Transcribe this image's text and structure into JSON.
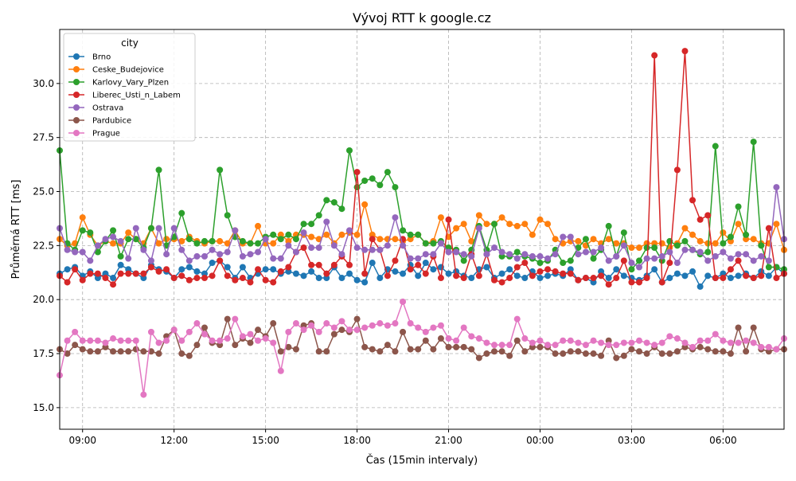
{
  "chart_data": {
    "type": "line",
    "title": "Vývoj RTT k google.cz",
    "xlabel": "Čas (15min intervaly)",
    "ylabel": "Průměrná RTT [ms]",
    "xlim": [
      "08:15",
      "08:00 (+1 day)"
    ],
    "ylim": [
      14.0,
      32.5
    ],
    "x_ticks": [
      "09:00",
      "12:00",
      "15:00",
      "18:00",
      "21:00",
      "00:00",
      "03:00",
      "06:00"
    ],
    "y_ticks": [
      "15.0",
      "17.5",
      "20.0",
      "22.5",
      "25.0",
      "27.5",
      "30.0"
    ],
    "grid": true,
    "legend": {
      "title": "city",
      "placement": "top-left"
    },
    "x": [
      "08:15",
      "08:30",
      "08:45",
      "09:00",
      "09:15",
      "09:30",
      "09:45",
      "10:00",
      "10:15",
      "10:30",
      "10:45",
      "11:00",
      "11:15",
      "11:30",
      "11:45",
      "12:00",
      "12:15",
      "12:30",
      "12:45",
      "13:00",
      "13:15",
      "13:30",
      "13:45",
      "14:00",
      "14:15",
      "14:30",
      "14:45",
      "15:00",
      "15:15",
      "15:30",
      "15:45",
      "16:00",
      "16:15",
      "16:30",
      "16:45",
      "17:00",
      "17:15",
      "17:30",
      "17:45",
      "18:00",
      "18:15",
      "18:30",
      "18:45",
      "19:00",
      "19:15",
      "19:30",
      "19:45",
      "20:00",
      "20:15",
      "20:30",
      "20:45",
      "21:00",
      "21:15",
      "21:30",
      "21:45",
      "22:00",
      "22:15",
      "22:30",
      "22:45",
      "23:00",
      "23:15",
      "23:30",
      "23:45",
      "00:00",
      "00:15",
      "00:30",
      "00:45",
      "01:00",
      "01:15",
      "01:30",
      "01:45",
      "02:00",
      "02:15",
      "02:30",
      "02:45",
      "03:00",
      "03:15",
      "03:30",
      "03:45",
      "04:00",
      "04:15",
      "04:30",
      "04:45",
      "05:00",
      "05:15",
      "05:30",
      "05:45",
      "06:00",
      "06:15",
      "06:30",
      "06:45",
      "07:00",
      "07:15",
      "07:30",
      "07:45",
      "08:00"
    ],
    "series": [
      {
        "name": "Brno",
        "color": "#1f77b4",
        "values": [
          21.2,
          21.4,
          21.5,
          21.1,
          21.3,
          21.0,
          21.2,
          21.0,
          21.6,
          21.4,
          21.2,
          21.0,
          21.6,
          21.4,
          21.3,
          21.0,
          21.4,
          21.5,
          21.3,
          21.2,
          21.7,
          21.8,
          21.5,
          21.0,
          21.5,
          21.0,
          21.2,
          21.4,
          21.4,
          21.2,
          21.3,
          21.2,
          21.1,
          21.3,
          21.0,
          21.0,
          21.5,
          21.0,
          21.2,
          20.9,
          20.8,
          21.7,
          21.0,
          21.4,
          21.3,
          21.2,
          21.6,
          21.1,
          21.7,
          21.4,
          21.5,
          21.2,
          21.3,
          21.1,
          21.0,
          21.4,
          21.5,
          21.0,
          21.2,
          21.4,
          21.1,
          21.0,
          21.3,
          21.0,
          21.1,
          21.2,
          21.1,
          21.4,
          20.9,
          21.0,
          20.8,
          21.3,
          21.0,
          21.4,
          21.1,
          21.0,
          20.9,
          21.1,
          21.4,
          20.8,
          21.0,
          21.2,
          21.1,
          21.3,
          20.6,
          21.1,
          21.0,
          21.2,
          21.0,
          21.1,
          21.2,
          21.0,
          21.3,
          21.1,
          21.5,
          21.2
        ]
      },
      {
        "name": "Ceske_Budejovice",
        "color": "#ff7f0e",
        "values": [
          22.8,
          22.5,
          22.6,
          23.8,
          23.0,
          22.5,
          22.7,
          22.6,
          22.6,
          23.1,
          22.8,
          22.6,
          23.3,
          22.6,
          22.8,
          22.8,
          22.7,
          22.9,
          22.7,
          22.6,
          22.7,
          22.7,
          22.6,
          23.2,
          22.6,
          22.6,
          23.4,
          22.6,
          22.6,
          23.0,
          22.7,
          23.0,
          23.0,
          22.9,
          22.8,
          23.0,
          22.6,
          23.0,
          23.1,
          23.0,
          24.4,
          23.0,
          22.8,
          22.8,
          22.8,
          22.7,
          22.8,
          23.0,
          22.6,
          22.7,
          23.8,
          22.9,
          23.3,
          23.5,
          22.7,
          23.9,
          23.5,
          23.5,
          23.8,
          23.5,
          23.4,
          23.5,
          23.0,
          23.7,
          23.5,
          22.8,
          22.6,
          22.7,
          22.7,
          22.5,
          22.8,
          22.6,
          22.8,
          22.6,
          22.6,
          22.4,
          22.4,
          22.6,
          22.6,
          22.6,
          22.4,
          22.6,
          23.3,
          23.0,
          22.7,
          22.6,
          22.6,
          23.1,
          22.7,
          23.5,
          22.8,
          22.8,
          22.6,
          22.6,
          23.5,
          22.3
        ]
      },
      {
        "name": "Karlovy_Vary_Plzen",
        "color": "#2ca02c",
        "values": [
          26.9,
          22.6,
          22.3,
          23.2,
          23.1,
          22.2,
          22.7,
          23.2,
          22.0,
          22.8,
          22.8,
          22.4,
          23.3,
          26.0,
          22.5,
          22.9,
          24.0,
          22.8,
          22.6,
          22.7,
          22.7,
          26.0,
          23.9,
          22.9,
          22.7,
          22.6,
          22.6,
          22.9,
          23.0,
          22.8,
          23.0,
          22.8,
          23.5,
          23.5,
          23.9,
          24.6,
          24.5,
          24.2,
          26.9,
          25.2,
          25.5,
          25.6,
          25.3,
          25.9,
          25.2,
          23.2,
          23.0,
          23.0,
          22.6,
          22.6,
          22.7,
          22.4,
          22.3,
          21.8,
          22.3,
          23.4,
          22.3,
          23.5,
          22.0,
          22.0,
          22.2,
          22.0,
          21.9,
          21.7,
          21.8,
          22.3,
          21.7,
          21.8,
          22.4,
          22.8,
          21.9,
          22.3,
          23.4,
          22.0,
          23.1,
          21.4,
          21.8,
          22.4,
          22.4,
          21.8,
          22.7,
          22.5,
          22.7,
          22.3,
          22.1,
          22.2,
          27.1,
          22.6,
          22.9,
          24.3,
          23.0,
          27.3,
          22.5,
          21.5,
          21.5,
          21.4
        ]
      },
      {
        "name": "Liberec_Usti_n_Labem",
        "color": "#d62728",
        "values": [
          21.1,
          20.8,
          21.4,
          20.9,
          21.2,
          21.2,
          21.0,
          20.7,
          21.2,
          21.2,
          21.2,
          21.2,
          21.5,
          21.3,
          21.4,
          21.0,
          21.1,
          20.9,
          21.0,
          21.0,
          21.1,
          21.8,
          21.1,
          20.9,
          21.0,
          20.8,
          21.4,
          20.9,
          20.8,
          21.3,
          21.5,
          22.2,
          22.4,
          21.6,
          21.6,
          21.2,
          21.6,
          22.0,
          21.6,
          25.9,
          21.2,
          22.8,
          22.3,
          21.1,
          21.8,
          22.8,
          21.4,
          21.6,
          21.2,
          22.0,
          21.0,
          23.7,
          21.1,
          21.0,
          22.1,
          21.1,
          22.1,
          20.9,
          20.8,
          21.0,
          21.5,
          21.7,
          21.1,
          21.3,
          21.4,
          21.3,
          21.2,
          21.2,
          20.9,
          21.0,
          21.0,
          21.1,
          20.7,
          21.0,
          21.8,
          20.8,
          20.8,
          21.0,
          31.3,
          20.8,
          21.7,
          26.0,
          31.5,
          24.6,
          23.7,
          23.9,
          21.0,
          21.0,
          21.4,
          21.8,
          21.1,
          21.0,
          21.1,
          23.3,
          21.0,
          21.2
        ]
      },
      {
        "name": "Ostrava",
        "color": "#9467bd",
        "values": [
          23.3,
          22.3,
          22.2,
          22.2,
          21.8,
          22.5,
          22.8,
          22.9,
          22.7,
          21.9,
          23.3,
          22.3,
          21.8,
          23.3,
          22.1,
          23.3,
          22.3,
          21.8,
          22.0,
          22.0,
          22.3,
          22.1,
          22.2,
          23.2,
          22.0,
          22.1,
          22.2,
          22.8,
          21.9,
          21.9,
          22.5,
          22.2,
          23.1,
          22.4,
          22.4,
          23.6,
          22.5,
          22.1,
          23.2,
          22.4,
          22.3,
          22.3,
          22.3,
          22.5,
          23.8,
          22.5,
          21.9,
          21.9,
          22.1,
          22.1,
          22.6,
          22.2,
          22.2,
          22.1,
          22.0,
          23.3,
          22.1,
          22.4,
          22.2,
          22.1,
          21.9,
          22.1,
          22.0,
          22.0,
          21.9,
          22.1,
          22.9,
          22.9,
          22.1,
          22.2,
          22.2,
          22.4,
          21.8,
          22.0,
          22.5,
          21.7,
          21.5,
          21.9,
          21.9,
          22.0,
          22.2,
          21.7,
          22.3,
          22.3,
          22.2,
          21.8,
          22.0,
          22.2,
          21.9,
          22.1,
          22.1,
          21.8,
          22.0,
          21.8,
          25.2,
          22.8
        ]
      },
      {
        "name": "Pardubice",
        "color": "#8c564b",
        "values": [
          17.7,
          17.5,
          17.9,
          17.7,
          17.6,
          17.6,
          17.8,
          17.6,
          17.6,
          17.6,
          17.7,
          17.6,
          17.6,
          17.5,
          18.3,
          18.6,
          17.5,
          17.4,
          17.9,
          18.7,
          18.0,
          17.9,
          19.1,
          17.9,
          18.2,
          18.0,
          18.6,
          18.3,
          18.9,
          17.6,
          17.8,
          17.7,
          18.8,
          18.9,
          17.6,
          17.6,
          18.4,
          18.6,
          18.5,
          19.1,
          17.8,
          17.7,
          17.6,
          17.9,
          17.6,
          18.5,
          17.7,
          17.7,
          18.1,
          17.7,
          18.2,
          17.8,
          17.8,
          17.8,
          17.7,
          17.3,
          17.5,
          17.6,
          17.6,
          17.4,
          18.1,
          17.6,
          17.8,
          17.8,
          17.8,
          17.5,
          17.5,
          17.6,
          17.6,
          17.5,
          17.5,
          17.4,
          18.1,
          17.3,
          17.4,
          17.7,
          17.6,
          17.5,
          17.8,
          17.5,
          17.5,
          17.6,
          17.8,
          17.7,
          17.8,
          17.7,
          17.6,
          17.6,
          17.5,
          18.7,
          17.6,
          18.7,
          17.7,
          17.6,
          17.7,
          17.7
        ]
      },
      {
        "name": "Prague",
        "color": "#e377c2",
        "values": [
          16.5,
          18.1,
          18.5,
          18.1,
          18.1,
          18.1,
          18.0,
          18.2,
          18.1,
          18.1,
          18.1,
          15.6,
          18.5,
          18.0,
          18.1,
          18.6,
          18.1,
          18.5,
          18.9,
          18.4,
          18.1,
          18.1,
          18.2,
          19.1,
          18.3,
          18.4,
          18.1,
          18.2,
          18.0,
          16.7,
          18.5,
          18.9,
          18.6,
          18.8,
          18.5,
          18.9,
          18.7,
          19.0,
          18.6,
          18.6,
          18.7,
          18.8,
          18.9,
          18.8,
          18.9,
          19.9,
          18.9,
          18.7,
          18.5,
          18.7,
          18.8,
          18.2,
          18.1,
          18.7,
          18.3,
          18.2,
          18.0,
          17.9,
          17.9,
          17.9,
          19.1,
          18.2,
          18.0,
          18.1,
          17.9,
          17.9,
          18.1,
          18.1,
          18.0,
          17.9,
          18.1,
          18.0,
          17.9,
          17.9,
          18.0,
          18.0,
          18.1,
          18.0,
          17.9,
          18.0,
          18.3,
          18.2,
          18.0,
          17.8,
          18.1,
          18.1,
          18.4,
          18.1,
          18.0,
          18.0,
          18.1,
          18.0,
          17.8,
          17.8,
          17.7,
          18.2
        ]
      }
    ]
  }
}
